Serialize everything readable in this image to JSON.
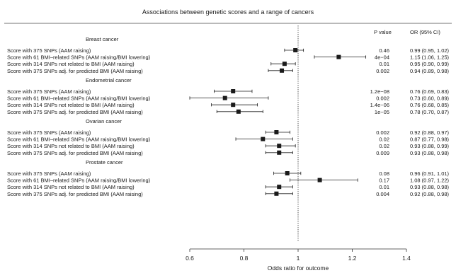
{
  "chart_data": {
    "type": "forest",
    "title": "Associations between genetic scores and a range of cancers",
    "xlabel": "Odds ratio for outcome",
    "xlim": [
      0.55,
      1.42
    ],
    "xticks": [
      "0.6",
      "0.8",
      "1",
      "1.2",
      "1.4"
    ],
    "reference_line": 1,
    "columns": {
      "p": "P value",
      "or": "OR (95% CI)"
    },
    "groups": [
      {
        "name": "Breast cancer",
        "rows": [
          {
            "label": "Score with 375 SNPs (AAM raising)",
            "or": 0.99,
            "lo": 0.95,
            "hi": 1.02,
            "p": "0.46",
            "text": "0.99 (0.95, 1.02)"
          },
          {
            "label": "Score with 61 BMI–related SNPs (AAM raising/BMI lowering)",
            "or": 1.15,
            "lo": 1.06,
            "hi": 1.25,
            "p": "4e−04",
            "text": "1.15 (1.06, 1.25)"
          },
          {
            "label": "Score with 314 SNPs not related to BMI (AAM raising)",
            "or": 0.95,
            "lo": 0.9,
            "hi": 0.99,
            "p": "0.01",
            "text": "0.95 (0.90, 0.99)"
          },
          {
            "label": "Score with 375 SNPs adj. for predicted BMI (AAM raising)",
            "or": 0.94,
            "lo": 0.89,
            "hi": 0.98,
            "p": "0.002",
            "text": "0.94 (0.89, 0.98)"
          }
        ]
      },
      {
        "name": "Endometrial cancer",
        "rows": [
          {
            "label": "Score with 375 SNPs (AAM raising)",
            "or": 0.76,
            "lo": 0.69,
            "hi": 0.83,
            "p": "1.2e−08",
            "text": "0.76 (0.69, 0.83)"
          },
          {
            "label": "Score with 61 BMI–related SNPs (AAM raising/BMI lowering)",
            "or": 0.73,
            "lo": 0.6,
            "hi": 0.89,
            "p": "0.002",
            "text": "0.73 (0.60, 0.89)"
          },
          {
            "label": "Score with 314 SNPs not related to BMI (AAM raising)",
            "or": 0.76,
            "lo": 0.68,
            "hi": 0.85,
            "p": "1.4e−06",
            "text": "0.76 (0.68, 0.85)"
          },
          {
            "label": "Score with 375 SNPs adj. for predicted BMI (AAM raising)",
            "or": 0.78,
            "lo": 0.7,
            "hi": 0.87,
            "p": "1e−05",
            "text": "0.78 (0.70, 0.87)"
          }
        ]
      },
      {
        "name": "Ovarian cancer",
        "rows": [
          {
            "label": "Score with 375 SNPs (AAM raising)",
            "or": 0.92,
            "lo": 0.88,
            "hi": 0.97,
            "p": "0.002",
            "text": "0.92 (0.88, 0.97)"
          },
          {
            "label": "Score with 61 BMI–related SNPs (AAM raising/BMI lowering)",
            "or": 0.87,
            "lo": 0.77,
            "hi": 0.98,
            "p": "0.02",
            "text": "0.87 (0.77, 0.98)"
          },
          {
            "label": "Score with 314 SNPs not related to BMI (AAM raising)",
            "or": 0.93,
            "lo": 0.88,
            "hi": 0.99,
            "p": "0.02",
            "text": "0.93 (0.88, 0.99)"
          },
          {
            "label": "Score with 375 SNPs adj. for predicted BMI (AAM raising)",
            "or": 0.93,
            "lo": 0.88,
            "hi": 0.98,
            "p": "0.009",
            "text": "0.93 (0.88, 0.98)"
          }
        ]
      },
      {
        "name": "Prostate cancer",
        "rows": [
          {
            "label": "Score with 375 SNPs (AAM raising)",
            "or": 0.96,
            "lo": 0.91,
            "hi": 1.01,
            "p": "0.08",
            "text": "0.96 (0.91, 1.01)"
          },
          {
            "label": "Score with 61 BMI–related SNPs (AAM raising/BMI lowering)",
            "or": 1.08,
            "lo": 0.97,
            "hi": 1.22,
            "p": "0.17",
            "text": "1.08 (0.97, 1.22)"
          },
          {
            "label": "Score with 314 SNPs not related to BMI (AAM raising)",
            "or": 0.93,
            "lo": 0.88,
            "hi": 0.98,
            "p": "0.01",
            "text": "0.93 (0.88, 0.98)"
          },
          {
            "label": "Score with 375 SNPs adj. for predicted BMI (AAM raising)",
            "or": 0.92,
            "lo": 0.88,
            "hi": 0.98,
            "p": "0.004",
            "text": "0.92 (0.88, 0.98)"
          }
        ]
      }
    ]
  }
}
